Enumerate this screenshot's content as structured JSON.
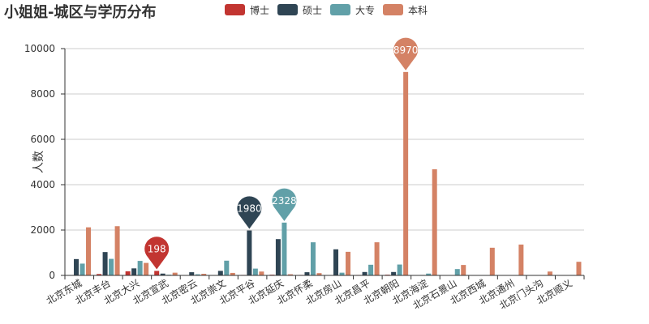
{
  "chart_data": {
    "type": "bar",
    "title": "小姐姐-城区与学历分布",
    "ylabel": "人数",
    "ylim": [
      0,
      10000
    ],
    "yticks": [
      0,
      2000,
      4000,
      6000,
      8000,
      10000
    ],
    "grid": true,
    "legend_position": "top-center",
    "categories": [
      "北京东城",
      "北京丰台",
      "北京大兴",
      "北京宣武",
      "北京密云",
      "北京崇文",
      "北京平谷",
      "北京延庆",
      "北京怀柔",
      "北京房山",
      "北京昌平",
      "北京朝阳",
      "北京海淀",
      "北京石景山",
      "北京西城",
      "北京通州",
      "北京门头沟",
      "北京顺义"
    ],
    "series": [
      {
        "name": "博士",
        "color": "#c23531",
        "values": [
          10,
          60,
          180,
          198,
          15,
          5,
          20,
          30,
          20,
          10,
          20,
          30,
          15,
          5,
          5,
          5,
          5,
          5
        ]
      },
      {
        "name": "硕士",
        "color": "#2f4554",
        "values": [
          720,
          1030,
          310,
          80,
          140,
          200,
          1980,
          1600,
          140,
          1150,
          150,
          150,
          20,
          15,
          10,
          10,
          10,
          10
        ]
      },
      {
        "name": "大专",
        "color": "#61a0a8",
        "values": [
          520,
          730,
          640,
          30,
          50,
          650,
          300,
          2328,
          1460,
          120,
          470,
          480,
          80,
          280,
          10,
          10,
          10,
          20
        ]
      },
      {
        "name": "本科",
        "color": "#d48265",
        "values": [
          2120,
          2170,
          550,
          120,
          70,
          110,
          170,
          50,
          100,
          1040,
          1460,
          8970,
          4680,
          460,
          1220,
          1360,
          170,
          600
        ]
      }
    ],
    "markers": [
      {
        "series": "博士",
        "category": "北京宣武",
        "value": 198
      },
      {
        "series": "硕士",
        "category": "北京平谷",
        "value": 1980
      },
      {
        "series": "大专",
        "category": "北京延庆",
        "value": 2328
      },
      {
        "series": "本科",
        "category": "北京朝阳",
        "value": 8970
      }
    ]
  }
}
